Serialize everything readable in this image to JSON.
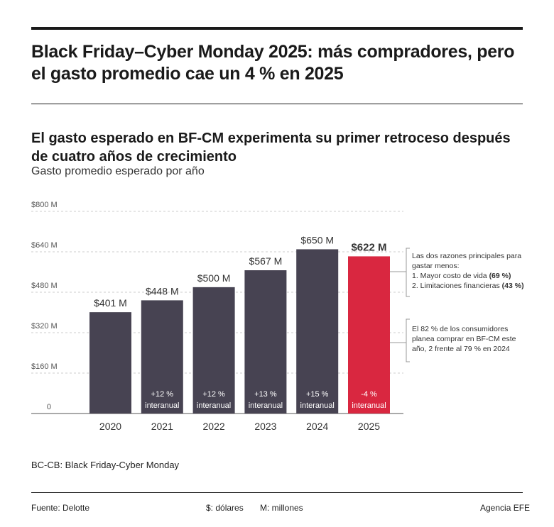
{
  "title": "Black Friday–Cyber Monday 2025: más compradores, pero el gasto promedio cae un 4 % en 2025",
  "subtitle": "El gasto esperado en BF-CM experimenta su primer retroceso después de cuatro años de crecimiento",
  "colors": {
    "bar": "#474352",
    "highlight": "#d92740",
    "grid": "#cccccc"
  },
  "chart_data": {
    "type": "bar",
    "ylabel": "Gasto promedio esperado por año",
    "categories": [
      "2020",
      "2021",
      "2022",
      "2023",
      "2024",
      "2025"
    ],
    "values": [
      401,
      448,
      500,
      567,
      650,
      622
    ],
    "value_labels": [
      "$401 M",
      "$448 M",
      "$500 M",
      "$567 M",
      "$650 M",
      "$622 M"
    ],
    "change_labels": [
      "",
      "+12 %",
      "+12 %",
      "+13 %",
      "+15 %",
      "-4 %"
    ],
    "change_suffix": "interanual",
    "ylim": [
      0,
      800
    ],
    "yticks": [
      0,
      160,
      320,
      480,
      640,
      800
    ],
    "ytick_labels": [
      "0",
      "$160 M",
      "$320 M",
      "$480 M",
      "$640 M",
      "$800 M"
    ],
    "grid": true,
    "highlight_index": 5,
    "annotations": [
      {
        "lines": [
          "Las dos razones principales para",
          "gastar menos:",
          "1. Mayor costo de vida ",
          "2. Limitaciones financieras "
        ],
        "bold": [
          "",
          "",
          "(69 %)",
          "(43 %)"
        ]
      },
      {
        "text": "El 82 % de los consumidores planea comprar en BF-CM este año, 2 frente al 79 % en 2024"
      }
    ]
  },
  "note": "BC-CB: Black Friday-Cyber Monday",
  "footer": {
    "source": "Fuente: Delotte",
    "currency": "$: dólares",
    "unit": "M: millones",
    "agency": "Agencia EFE"
  }
}
